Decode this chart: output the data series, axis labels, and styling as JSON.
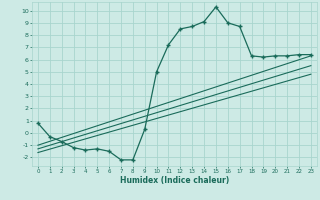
{
  "xlabel": "Humidex (Indice chaleur)",
  "xlim": [
    -0.5,
    23.5
  ],
  "ylim": [
    -2.7,
    10.7
  ],
  "yticks": [
    -2,
    -1,
    0,
    1,
    2,
    3,
    4,
    5,
    6,
    7,
    8,
    9,
    10
  ],
  "xticks": [
    0,
    1,
    2,
    3,
    4,
    5,
    6,
    7,
    8,
    9,
    10,
    11,
    12,
    13,
    14,
    15,
    16,
    17,
    18,
    19,
    20,
    21,
    22,
    23
  ],
  "background_color": "#cdeae5",
  "grid_color": "#a8d5ce",
  "line_color": "#1a6b5a",
  "curve_x": [
    0,
    1,
    2,
    3,
    4,
    5,
    6,
    7,
    8,
    9,
    10,
    11,
    12,
    13,
    14,
    15,
    16,
    17,
    18,
    19,
    20,
    21,
    22,
    23
  ],
  "curve_y": [
    0.8,
    -0.3,
    -0.7,
    -1.2,
    -1.4,
    -1.3,
    -1.5,
    -2.2,
    -2.2,
    0.3,
    5.0,
    7.2,
    8.5,
    8.7,
    9.1,
    10.3,
    9.0,
    8.7,
    6.3,
    6.2,
    6.3,
    6.3,
    6.4,
    6.4
  ],
  "line1_x": [
    0,
    23
  ],
  "line1_y": [
    -1.0,
    6.3
  ],
  "line2_x": [
    0,
    23
  ],
  "line2_y": [
    -1.3,
    5.5
  ],
  "line3_x": [
    0,
    23
  ],
  "line3_y": [
    -1.6,
    4.8
  ]
}
